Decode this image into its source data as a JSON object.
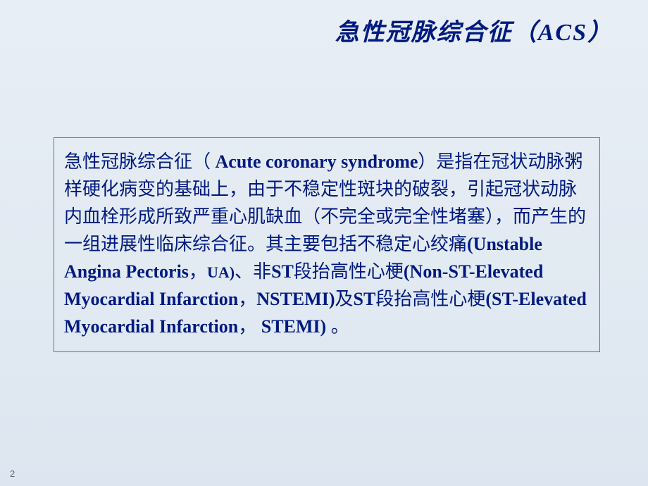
{
  "title": "急性冠脉综合征（ACS）",
  "body": {
    "p1_prefix": "急性冠脉综合征（ ",
    "p1_en1": "Acute coronary syndrome",
    "p1_mid": "）是指在冠状动脉粥样硬化病变的基础上，由于不稳定性斑块的破裂，引起冠状动脉内血栓形成所致严重心肌缺血（不完全或完全性堵塞），而产生的一组进展性临床综合征。其主要包括不稳定心绞痛",
    "p1_en2": "(Unstable Angina Pectoris",
    "p1_sep1": "，",
    "p1_en2b": "UA)",
    "p1_sep2": "、非",
    "p1_en3a": "ST",
    "p1_cn3": "段抬高性心梗",
    "p1_en3b": "(Non-ST-Elevated Myocardial Infarction",
    "p1_sep3": "，",
    "p1_en3c": "NSTEMI)",
    "p1_cn4": "及",
    "p1_en4a": "ST",
    "p1_cn5": "段抬高性心梗",
    "p1_en4b": "(ST-Elevated Myocardial Infarction",
    "p1_sep4": "， ",
    "p1_en4c": "STEMI) ",
    "p1_end": "。"
  },
  "page_number": "2",
  "colors": {
    "text": "#001a80",
    "border": "#4a8a5a",
    "bg_top": "#e8eef5",
    "bg_bottom": "#dde6f0"
  }
}
